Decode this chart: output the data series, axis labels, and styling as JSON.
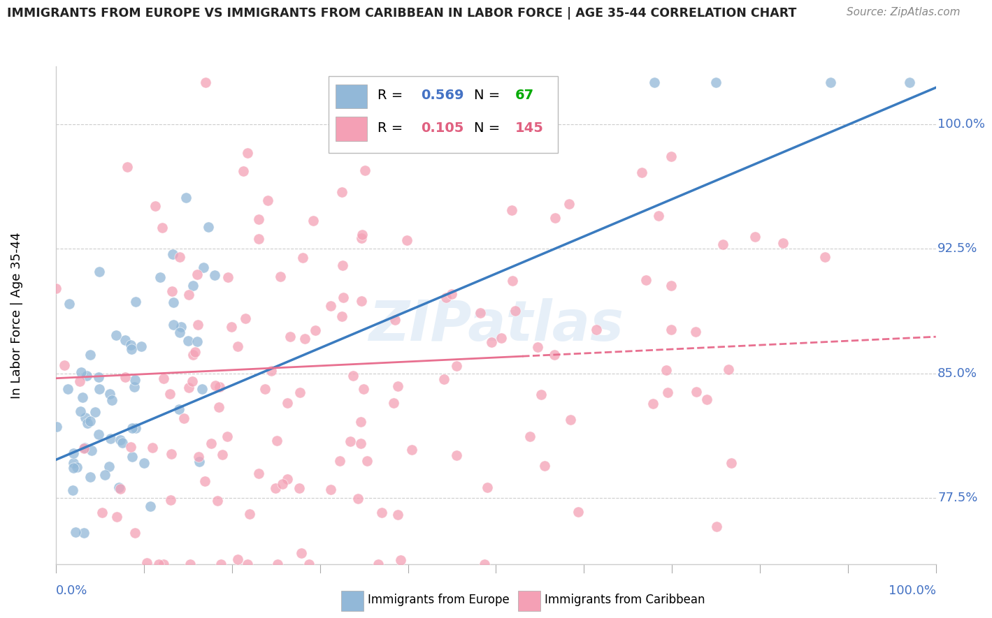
{
  "title": "IMMIGRANTS FROM EUROPE VS IMMIGRANTS FROM CARIBBEAN IN LABOR FORCE | AGE 35-44 CORRELATION CHART",
  "source_text": "Source: ZipAtlas.com",
  "ylabel": "In Labor Force | Age 35-44",
  "xlim": [
    0.0,
    1.0
  ],
  "ylim": [
    0.735,
    1.035
  ],
  "yticks": [
    0.775,
    0.85,
    0.925,
    1.0
  ],
  "ytick_labels": [
    "77.5%",
    "85.0%",
    "92.5%",
    "100.0%"
  ],
  "xtick_labels": [
    "0.0%",
    "100.0%"
  ],
  "europe_color": "#92b8d8",
  "caribbean_color": "#f4a0b5",
  "europe_line_color": "#3a7bbf",
  "caribbean_line_color": "#e87090",
  "europe_R": 0.569,
  "europe_N": 67,
  "caribbean_R": 0.105,
  "caribbean_N": 145,
  "watermark": "ZIPatlas",
  "background_color": "#ffffff",
  "grid_color": "#cccccc",
  "title_color": "#222222",
  "axis_label_color": "#4472c4",
  "legend_R_color": "#4472c4",
  "legend_N_color": "#00aa00"
}
